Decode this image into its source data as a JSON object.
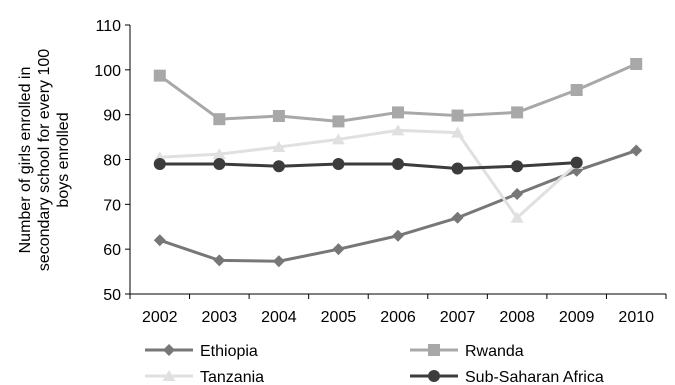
{
  "chart_data": {
    "type": "line",
    "title": "",
    "xlabel": "",
    "ylabel_lines": [
      "Number of girls enrolled in",
      "secondary school for every 100",
      "boys enrolled"
    ],
    "x": [
      "2002",
      "2003",
      "2004",
      "2005",
      "2006",
      "2007",
      "2008",
      "2009",
      "2010"
    ],
    "ylim": [
      50,
      110
    ],
    "yticks": [
      "50",
      "60",
      "70",
      "80",
      "90",
      "100",
      "110"
    ],
    "grid": false,
    "legend_position": "bottom",
    "series": [
      {
        "name": "Ethiopia",
        "color": "#777777",
        "marker": "diamond",
        "values": [
          62,
          57.5,
          57.3,
          60,
          63,
          67,
          72.3,
          77.5,
          82
        ]
      },
      {
        "name": "Rwanda",
        "color": "#a8a8a8",
        "marker": "square",
        "values": [
          98.7,
          89,
          89.7,
          88.5,
          90.5,
          89.8,
          90.5,
          95.5,
          101.3
        ]
      },
      {
        "name": "Tanzania",
        "color": "#e0e0e0",
        "marker": "triangle",
        "values": [
          80.5,
          81.2,
          82.8,
          84.5,
          86.5,
          86,
          67,
          79,
          null
        ]
      },
      {
        "name": "Sub-Saharan Africa",
        "color": "#3c3c3c",
        "marker": "circle",
        "values": [
          79,
          79,
          78.5,
          79,
          79,
          78,
          78.5,
          79.3,
          null
        ]
      }
    ]
  }
}
